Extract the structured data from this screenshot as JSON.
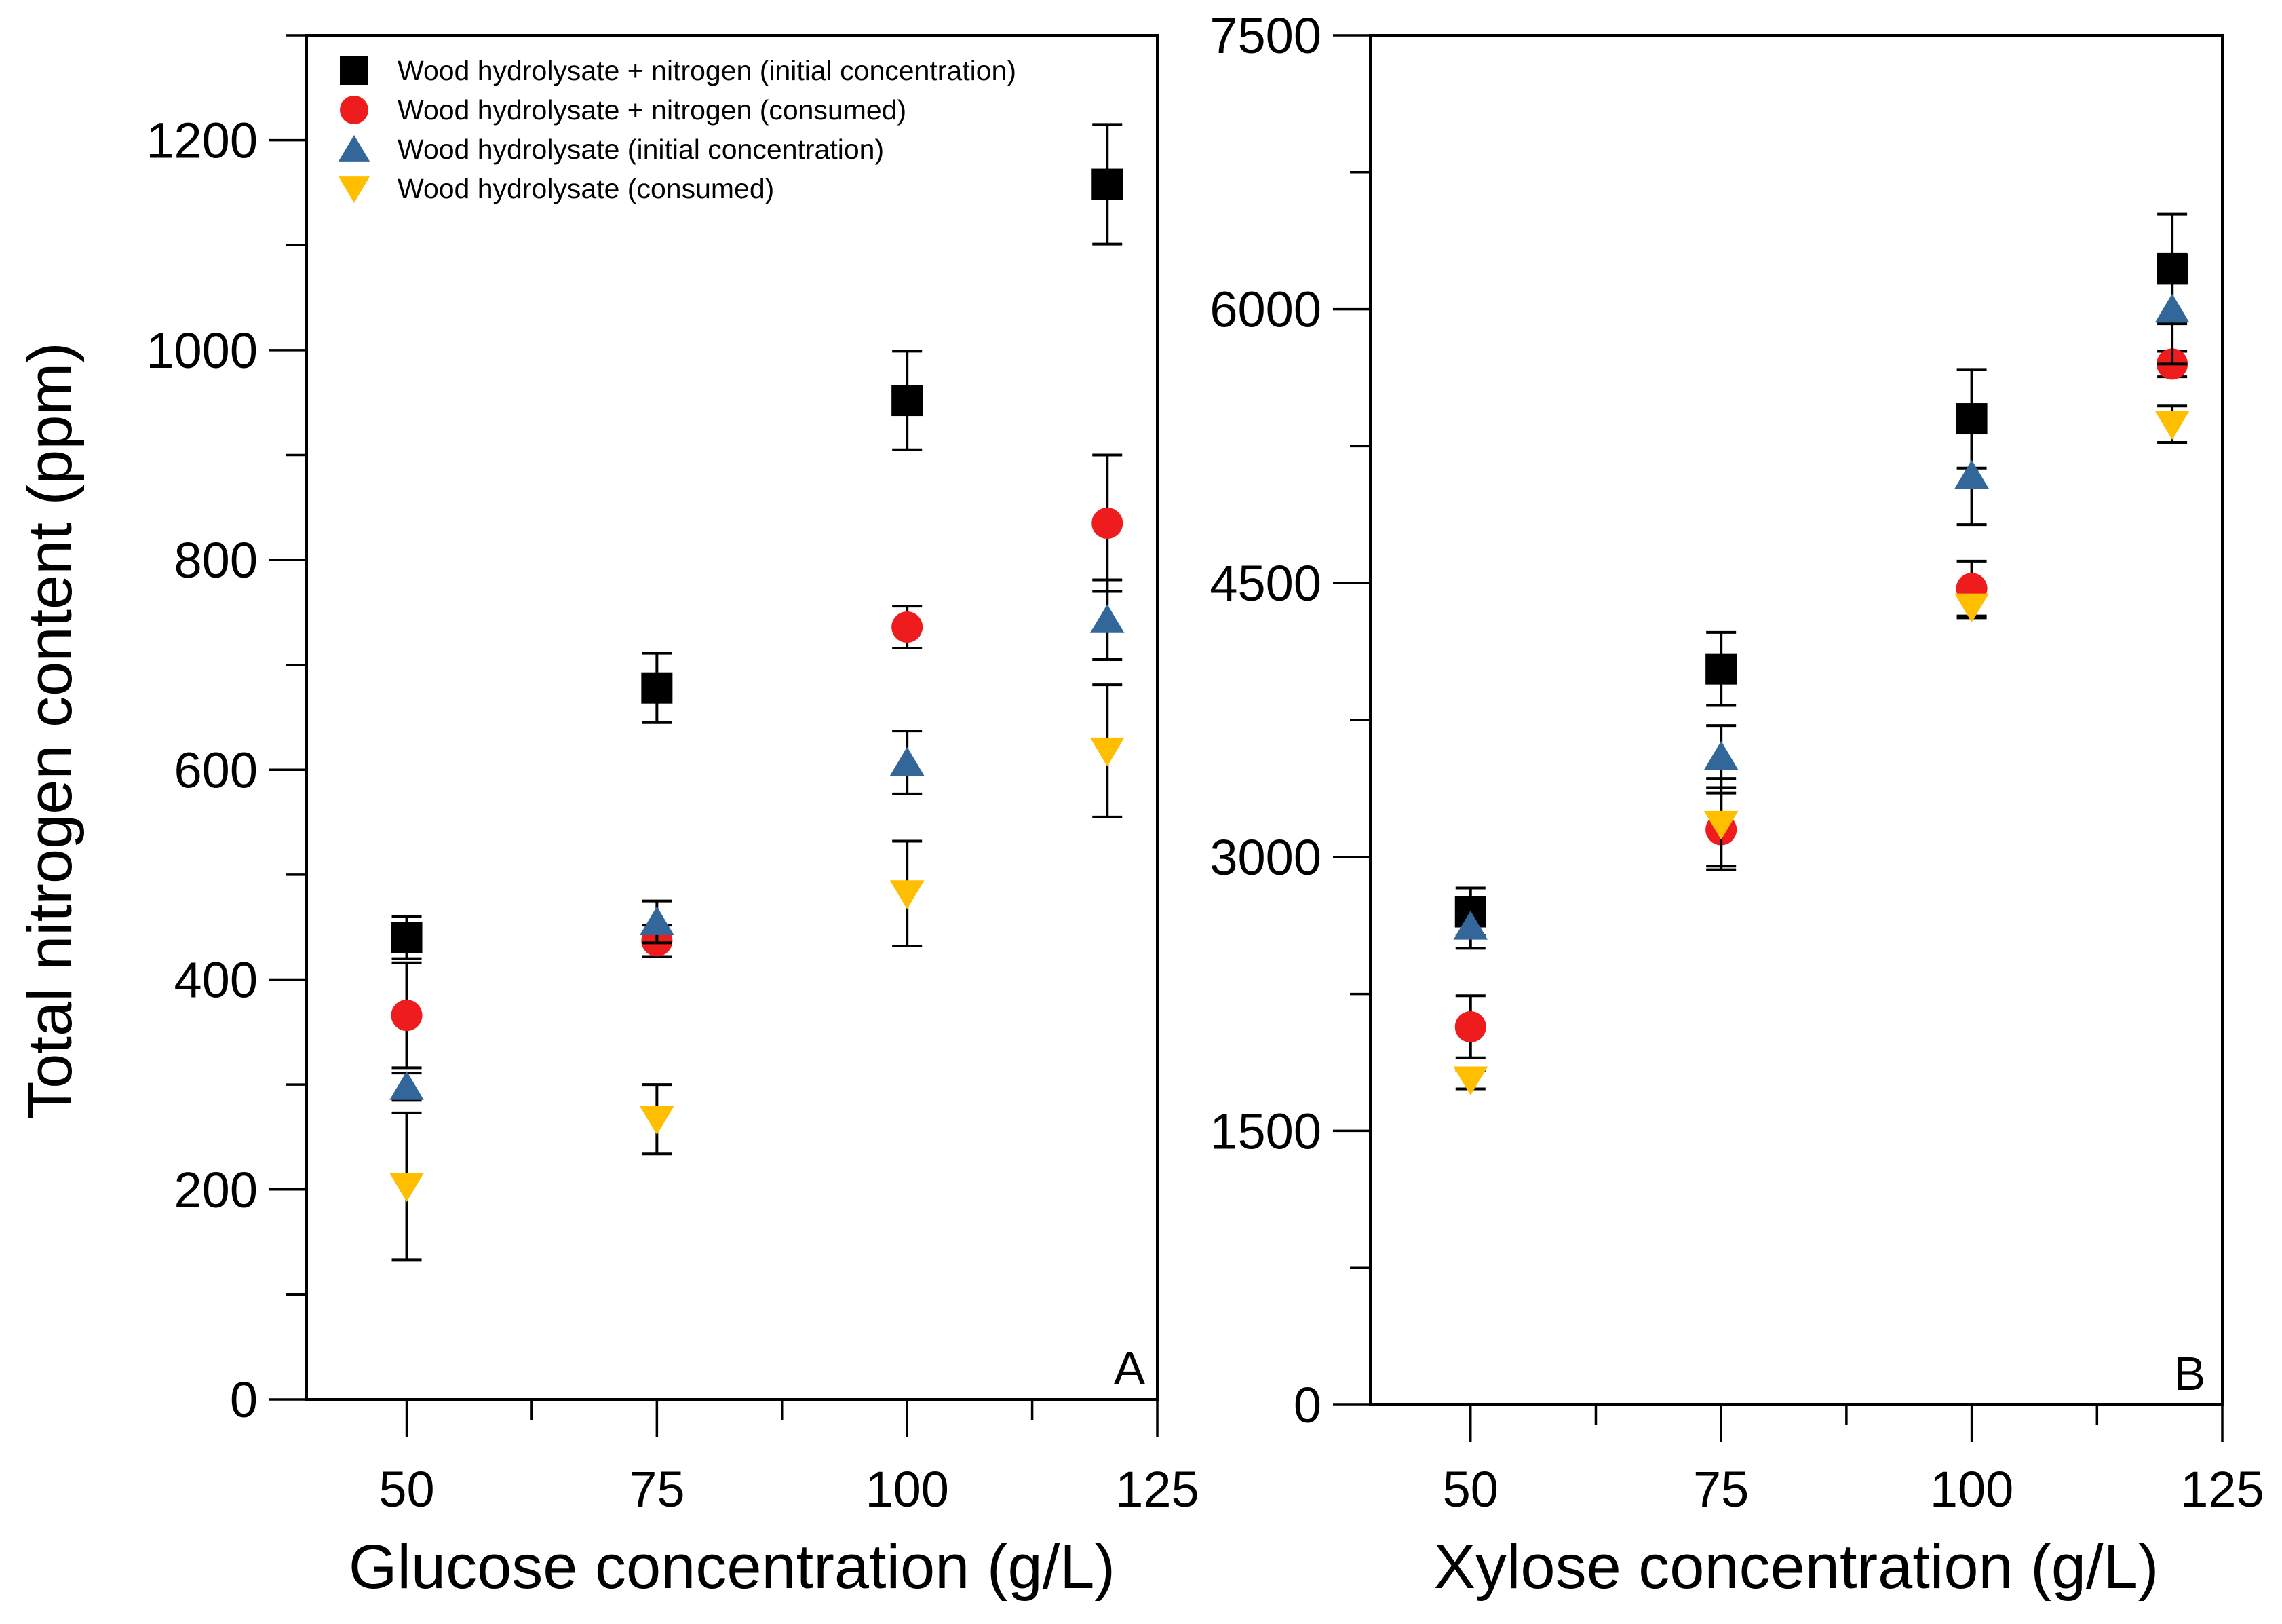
{
  "chart_data": [
    {
      "type": "scatter",
      "panel_label": "A",
      "xlabel": "Glucose concentration (g/L)",
      "ylabel": "Total nitrogen content (ppm)",
      "xlim": [
        40,
        125
      ],
      "ylim": [
        0,
        1300
      ],
      "xticks": [
        50,
        75,
        100,
        125
      ],
      "xtick_labels": [
        "50",
        "75",
        "100",
        "125"
      ],
      "yticks": [
        0,
        200,
        400,
        600,
        800,
        1000,
        1200
      ],
      "ytick_labels": [
        "0",
        "200",
        "400",
        "600",
        "800",
        "1000",
        "1200"
      ],
      "legend_position": "top-left",
      "series": [
        {
          "name": "Wood hydrolysate + nitrogen (initial concentration)",
          "marker": "square",
          "color": "#000000",
          "x": [
            50,
            75,
            100,
            120
          ],
          "y": [
            440,
            678,
            952,
            1158
          ],
          "err": [
            20,
            33,
            47,
            57
          ]
        },
        {
          "name": "Wood hydrolysate + nitrogen (consumed)",
          "marker": "circle",
          "color": "#ee1c1c",
          "x": [
            50,
            75,
            100,
            120
          ],
          "y": [
            366,
            437,
            736,
            835
          ],
          "err": [
            50,
            15,
            20,
            65
          ]
        },
        {
          "name": "Wood hydrolysate (initial concentration)",
          "marker": "triangle-up",
          "color": "#336699",
          "x": [
            50,
            75,
            100,
            120
          ],
          "y": [
            298,
            455,
            607,
            743
          ],
          "err": [
            13,
            20,
            30,
            38
          ]
        },
        {
          "name": "Wood hydrolysate (consumed)",
          "marker": "triangle-down",
          "color": "#ffbf00",
          "x": [
            50,
            75,
            100,
            120
          ],
          "y": [
            203,
            267,
            482,
            618
          ],
          "err": [
            70,
            33,
            50,
            63
          ]
        }
      ]
    },
    {
      "type": "scatter",
      "panel_label": "B",
      "xlabel": "Xylose concentration (g/L)",
      "ylabel": "",
      "xlim": [
        40,
        125
      ],
      "ylim": [
        0,
        7500
      ],
      "xticks": [
        50,
        75,
        100,
        125
      ],
      "xtick_labels": [
        "50",
        "75",
        "100",
        "125"
      ],
      "yticks": [
        0,
        1500,
        3000,
        4500,
        6000,
        7500
      ],
      "ytick_labels": [
        "0",
        "1500",
        "3000",
        "4500",
        "6000",
        "7500"
      ],
      "series": [
        {
          "name": "Wood hydrolysate + nitrogen (initial concentration)",
          "marker": "square",
          "color": "#000000",
          "x": [
            50,
            75,
            100,
            120
          ],
          "y": [
            2700,
            4030,
            5400,
            6220
          ],
          "err": [
            130,
            200,
            270,
            300
          ]
        },
        {
          "name": "Wood hydrolysate + nitrogen (consumed)",
          "marker": "circle",
          "color": "#ee1c1c",
          "x": [
            50,
            75,
            100,
            120
          ],
          "y": [
            2070,
            3150,
            4470,
            5700
          ],
          "err": [
            170,
            200,
            150,
            70
          ]
        },
        {
          "name": "Wood hydrolysate (initial concentration)",
          "marker": "triangle-up",
          "color": "#336699",
          "x": [
            50,
            75,
            100,
            120
          ],
          "y": [
            2620,
            3550,
            5090,
            6000
          ],
          "err": [
            120,
            170,
            270,
            300
          ]
        },
        {
          "name": "Wood hydrolysate (consumed)",
          "marker": "triangle-down",
          "color": "#ffbf00",
          "x": [
            50,
            75,
            100,
            120
          ],
          "y": [
            1780,
            3180,
            4370,
            5370
          ],
          "err": [
            50,
            250,
            60,
            100
          ]
        }
      ]
    }
  ]
}
